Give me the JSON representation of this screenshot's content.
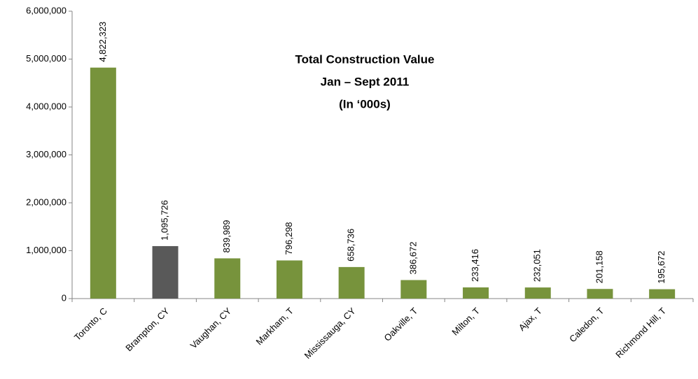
{
  "chart_data": {
    "type": "bar",
    "title": [
      "Total Construction Value",
      "Jan – Sept  2011",
      "(In ‘000s)"
    ],
    "categories": [
      "Toronto, C",
      "Brampton, CY",
      "Vaughan, CY",
      "Markham, T",
      "Mississauga, CY",
      "Oakville, T",
      "Milton, T",
      "Ajax, T",
      "Caledon, T",
      "Richmond Hill, T"
    ],
    "values": [
      4822323,
      1095726,
      839989,
      796298,
      658736,
      386672,
      233416,
      232051,
      201158,
      195672
    ],
    "value_labels": [
      "4,822,323",
      "1,095,726",
      "839,989",
      "796,298",
      "658,736",
      "386,672",
      "233,416",
      "232,051",
      "201,158",
      "195,672"
    ],
    "colors": [
      "#77933c",
      "#595959",
      "#77933c",
      "#77933c",
      "#77933c",
      "#77933c",
      "#77933c",
      "#77933c",
      "#77933c",
      "#77933c"
    ],
    "ylim": [
      0,
      6000000
    ],
    "yticks": [
      {
        "value": 0,
        "label": "0"
      },
      {
        "value": 1000000,
        "label": "1,000,000"
      },
      {
        "value": 2000000,
        "label": "2,000,000"
      },
      {
        "value": 3000000,
        "label": "3,000,000"
      },
      {
        "value": 4000000,
        "label": "4,000,000"
      },
      {
        "value": 5000000,
        "label": "5,000,000"
      },
      {
        "value": 6000000,
        "label": "6,000,000"
      }
    ],
    "grid": false
  }
}
